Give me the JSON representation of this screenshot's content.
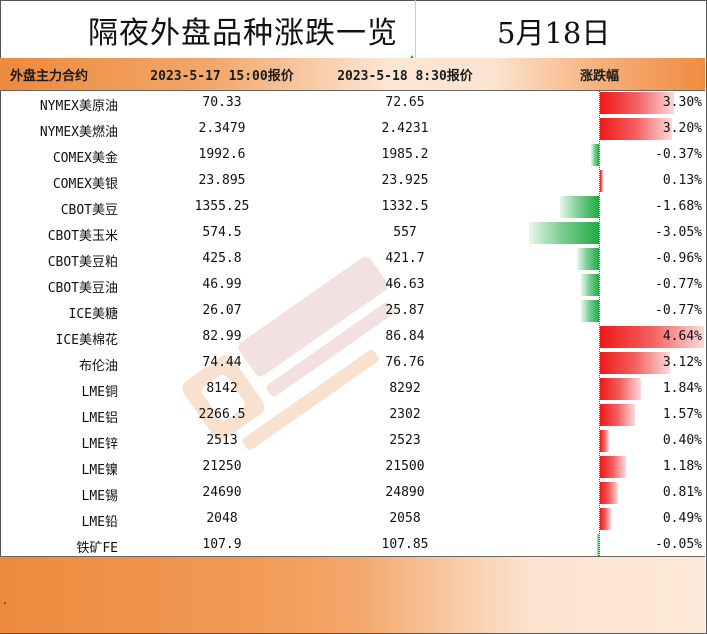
{
  "title": "隔夜外盘品种涨跌一览",
  "date": "5月18日",
  "headers": {
    "col1": "外盘主力合约",
    "col2": "2023-5-17 15:00报价",
    "col3": "2023-5-18 8:30报价",
    "col4": "涨跌幅"
  },
  "footer_mark": ".",
  "colors": {
    "accent": "#ed8a3d",
    "up": "#f01818",
    "down": "#1faa45"
  },
  "chart_data": {
    "type": "table",
    "title": "隔夜外盘品种涨跌一览",
    "columns": [
      "外盘主力合约",
      "2023-5-17 15:00报价",
      "2023-5-18 8:30报价",
      "涨跌幅"
    ],
    "rows": [
      {
        "name": "NYMEX美原油",
        "prev": "70.33",
        "curr": "72.65",
        "pct": 3.3,
        "pct_label": "3.30%"
      },
      {
        "name": "NYMEX美燃油",
        "prev": "2.3479",
        "curr": "2.4231",
        "pct": 3.2,
        "pct_label": "3.20%"
      },
      {
        "name": "COMEX美金",
        "prev": "1992.6",
        "curr": "1985.2",
        "pct": -0.37,
        "pct_label": "-0.37%"
      },
      {
        "name": "COMEX美银",
        "prev": "23.895",
        "curr": "23.925",
        "pct": 0.13,
        "pct_label": "0.13%"
      },
      {
        "name": "CBOT美豆",
        "prev": "1355.25",
        "curr": "1332.5",
        "pct": -1.68,
        "pct_label": "-1.68%"
      },
      {
        "name": "CBOT美玉米",
        "prev": "574.5",
        "curr": "557",
        "pct": -3.05,
        "pct_label": "-3.05%"
      },
      {
        "name": "CBOT美豆粕",
        "prev": "425.8",
        "curr": "421.7",
        "pct": -0.96,
        "pct_label": "-0.96%"
      },
      {
        "name": "CBOT美豆油",
        "prev": "46.99",
        "curr": "46.63",
        "pct": -0.77,
        "pct_label": "-0.77%"
      },
      {
        "name": "ICE美糖",
        "prev": "26.07",
        "curr": "25.87",
        "pct": -0.77,
        "pct_label": "-0.77%"
      },
      {
        "name": "ICE美棉花",
        "prev": "82.99",
        "curr": "86.84",
        "pct": 4.64,
        "pct_label": "4.64%"
      },
      {
        "name": "布伦油",
        "prev": "74.44",
        "curr": "76.76",
        "pct": 3.12,
        "pct_label": "3.12%"
      },
      {
        "name": "LME铜",
        "prev": "8142",
        "curr": "8292",
        "pct": 1.84,
        "pct_label": "1.84%"
      },
      {
        "name": "LME铝",
        "prev": "2266.5",
        "curr": "2302",
        "pct": 1.57,
        "pct_label": "1.57%"
      },
      {
        "name": "LME锌",
        "prev": "2513",
        "curr": "2523",
        "pct": 0.4,
        "pct_label": "0.40%"
      },
      {
        "name": "LME镍",
        "prev": "21250",
        "curr": "21500",
        "pct": 1.18,
        "pct_label": "1.18%"
      },
      {
        "name": "LME锡",
        "prev": "24690",
        "curr": "24890",
        "pct": 0.81,
        "pct_label": "0.81%"
      },
      {
        "name": "LME铅",
        "prev": "2048",
        "curr": "2058",
        "pct": 0.49,
        "pct_label": "0.49%"
      },
      {
        "name": "铁矿FE",
        "prev": "107.9",
        "curr": "107.85",
        "pct": -0.05,
        "pct_label": "-0.05%"
      }
    ]
  }
}
